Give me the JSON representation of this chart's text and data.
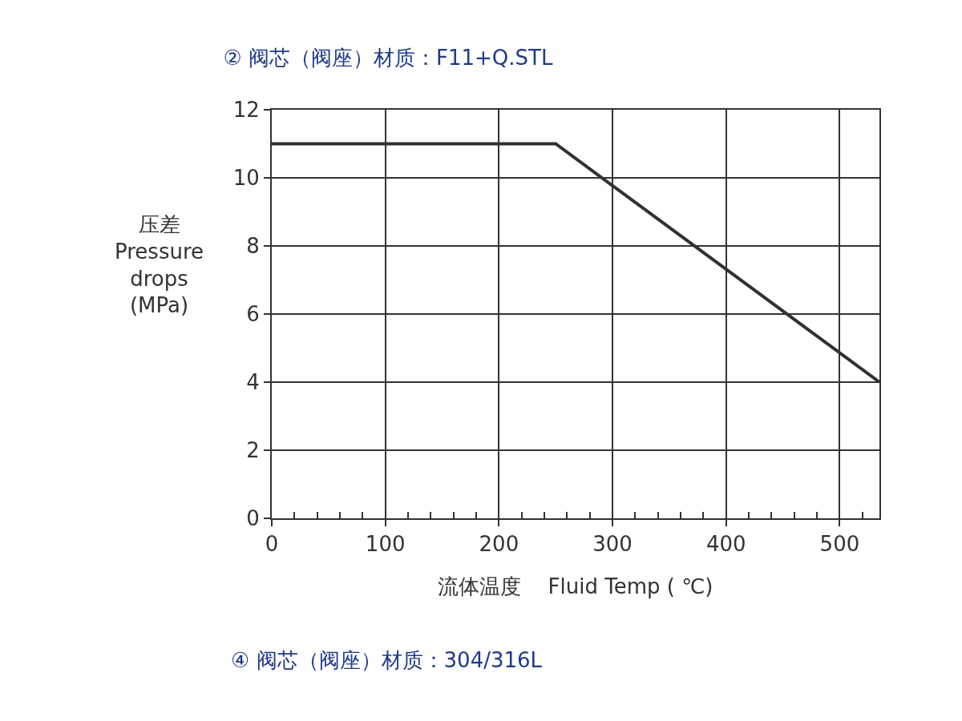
{
  "chart_data": {
    "type": "line",
    "title": "② 阀芯（阀座）材质：F11+Q.STL",
    "xlabel": "流体温度    Fluid Temp ( ℃)",
    "ylabel": "压差\nPressure\ndrops\n(MPa)",
    "annotations": [
      "④ 阀芯（阀座）材质：304/316L"
    ],
    "x": [
      0,
      250,
      535
    ],
    "series": [
      {
        "color": "#333031",
        "values": [
          11,
          11,
          4
        ]
      }
    ],
    "xlim": [
      0,
      535
    ],
    "xticks": [
      0,
      {
        "value": 20,
        "label": null
      },
      {
        "value": 40,
        "label": null
      },
      {
        "value": 60,
        "label": null
      },
      {
        "value": 80,
        "label": null
      },
      100,
      {
        "value": 120,
        "label": null
      },
      {
        "value": 140,
        "label": null
      },
      {
        "value": 160,
        "label": null
      },
      {
        "value": 180,
        "label": null
      },
      200,
      {
        "value": 220,
        "label": null
      },
      {
        "value": 240,
        "label": null
      },
      {
        "value": 260,
        "label": null
      },
      {
        "value": 280,
        "label": null
      },
      300,
      {
        "value": 320,
        "label": null
      },
      {
        "value": 340,
        "label": null
      },
      {
        "value": 360,
        "label": null
      },
      {
        "value": 380,
        "label": null
      },
      400,
      {
        "value": 420,
        "label": null
      },
      {
        "value": 440,
        "label": null
      },
      {
        "value": 460,
        "label": null
      },
      {
        "value": 480,
        "label": null
      },
      500,
      {
        "value": 520,
        "label": null
      }
    ],
    "ylim": [
      0,
      12
    ],
    "yticks": [
      0,
      2,
      4,
      6,
      8,
      10,
      12
    ],
    "grid": true,
    "marker": "none",
    "line_style": "solid"
  }
}
